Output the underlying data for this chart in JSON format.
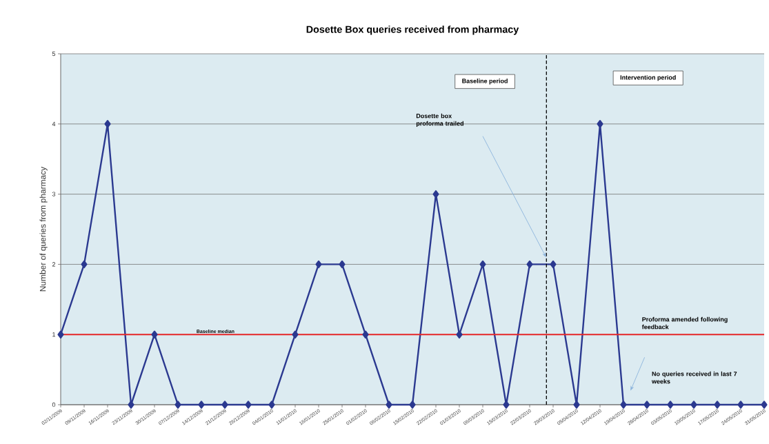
{
  "chart_data": {
    "type": "line",
    "title": "Dosette Box queries received from pharmacy",
    "ylabel": "Number of queries from pharmacy",
    "x": [
      "2009-11-02",
      "2009-11-09",
      "2009-11-16",
      "2009-11-23",
      "2009-11-30",
      "2009-12-07",
      "2009-12-14",
      "2009-12-21",
      "2009-12-28",
      "2010-01-04",
      "2010-01-11",
      "2010-01-18",
      "2010-01-25",
      "2010-02-01",
      "2010-02-08",
      "2010-02-15",
      "2010-02-22",
      "2010-03-01",
      "2010-03-08",
      "2010-03-15",
      "2010-03-22",
      "2010-03-29",
      "2010-04-05",
      "2010-04-12",
      "2010-04-19",
      "2010-04-26",
      "2010-05-03",
      "2010-05-10",
      "2010-05-17",
      "2010-05-24",
      "2010-05-31"
    ],
    "series": [
      {
        "color": "#2b3990",
        "values": [
          1,
          2,
          4,
          0,
          1,
          0,
          0,
          0,
          0,
          0,
          1,
          2,
          2,
          1,
          0,
          0,
          3,
          1,
          2,
          0,
          2,
          2,
          0,
          4,
          0,
          0,
          0,
          0,
          0,
          0,
          0
        ]
      }
    ],
    "xlim": [
      "2009-11-02",
      "2010-05-31"
    ],
    "xticks": [
      {
        "value": "2009-11-02",
        "label": "02/11/2009"
      },
      {
        "value": "2009-11-09",
        "label": "09/11/2009"
      },
      {
        "value": "2009-11-16",
        "label": "16/11/2009"
      },
      {
        "value": "2009-11-23",
        "label": "23/11/2009"
      },
      {
        "value": "2009-11-30",
        "label": "30/11/2009"
      },
      {
        "value": "2009-12-07",
        "label": "07/12/2009"
      },
      {
        "value": "2009-12-14",
        "label": "14/12/2009"
      },
      {
        "value": "2009-12-21",
        "label": "21/12/2009"
      },
      {
        "value": "2009-12-28",
        "label": "28/12/2009"
      },
      {
        "value": "2010-01-04",
        "label": "04/01/2010"
      },
      {
        "value": "2010-01-11",
        "label": "11/01/2010"
      },
      {
        "value": "2010-01-18",
        "label": "18/01/2010"
      },
      {
        "value": "2010-01-25",
        "label": "25/01/2010"
      },
      {
        "value": "2010-02-01",
        "label": "01/02/2010"
      },
      {
        "value": "2010-02-08",
        "label": "08/02/2010"
      },
      {
        "value": "2010-02-15",
        "label": "15/02/2010"
      },
      {
        "value": "2010-02-22",
        "label": "22/02/2010"
      },
      {
        "value": "2010-03-01",
        "label": "01/03/2010"
      },
      {
        "value": "2010-03-08",
        "label": "08/03/2010"
      },
      {
        "value": "2010-03-15",
        "label": "15/03/2010"
      },
      {
        "value": "2010-03-22",
        "label": "22/03/2010"
      },
      {
        "value": "2010-03-29",
        "label": "29/03/2010"
      },
      {
        "value": "2010-04-05",
        "label": "05/04/2010"
      },
      {
        "value": "2010-04-12",
        "label": "12/04/2010"
      },
      {
        "value": "2010-04-19",
        "label": "19/04/2010"
      },
      {
        "value": "2010-04-26",
        "label": "26/04/2010"
      },
      {
        "value": "2010-05-03",
        "label": "03/05/2010"
      },
      {
        "value": "2010-05-10",
        "label": "10/05/2010"
      },
      {
        "value": "2010-05-17",
        "label": "17/05/2010"
      },
      {
        "value": "2010-05-24",
        "label": "24/05/2010"
      },
      {
        "value": "2010-05-31",
        "label": "31/05/2010"
      }
    ],
    "ylim": [
      0,
      5
    ],
    "yticks": [
      0,
      1,
      2,
      3,
      4,
      5
    ],
    "grid": "y",
    "marker": "diamond",
    "line_style": "solid",
    "ref_lines": [
      {
        "axis": "y",
        "value": 1,
        "label": "Baseline median",
        "color": "#e8282b",
        "line_style": "solid"
      },
      {
        "axis": "x",
        "value": "2010-03-27",
        "color": "#000000",
        "line_style": "dashed"
      }
    ],
    "annotations": [
      "Baseline period",
      "Intervention period",
      "Dosette box proforma trailed",
      "Proforma amended following feedback",
      "No queries received in last 7 weeks"
    ]
  }
}
